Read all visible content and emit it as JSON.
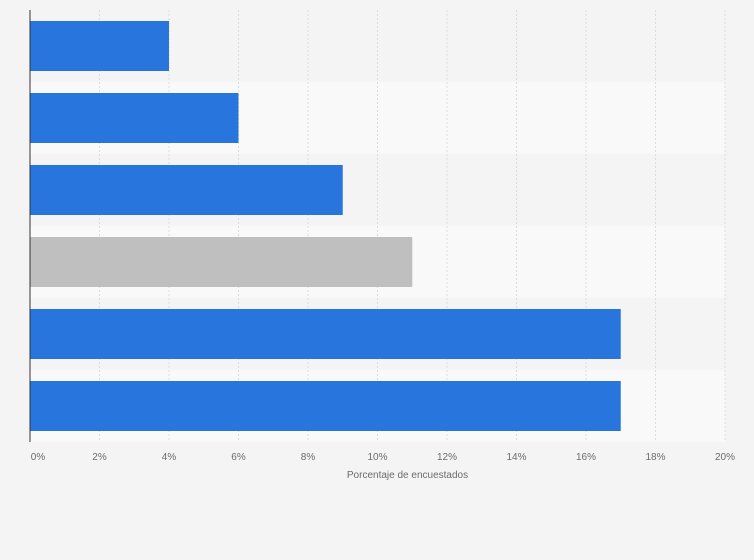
{
  "chart_data": {
    "type": "bar",
    "orientation": "horizontal",
    "categories": [
      "",
      "",
      "",
      "",
      "",
      ""
    ],
    "values": [
      4,
      6,
      9,
      11,
      17,
      17
    ],
    "xlabel": "Porcentaje de encuestados",
    "ylabel": "",
    "xlim": [
      0,
      20
    ],
    "x_ticks": [
      0,
      2,
      4,
      6,
      8,
      10,
      12,
      14,
      16,
      18,
      20
    ],
    "tick_labels": [
      "0%",
      "2%",
      "4%",
      "6%",
      "8%",
      "10%",
      "12%",
      "14%",
      "16%",
      "18%",
      "20%"
    ],
    "grid": true,
    "bar_colors": [
      "#2876dd",
      "#2876dd",
      "#2876dd",
      "#bfbfbf",
      "#2876dd",
      "#2876dd"
    ],
    "band_colors": [
      "#f4f4f4",
      "#f9f9f9"
    ],
    "gridline_color": "#dddddd",
    "axis_color": "#333333"
  }
}
